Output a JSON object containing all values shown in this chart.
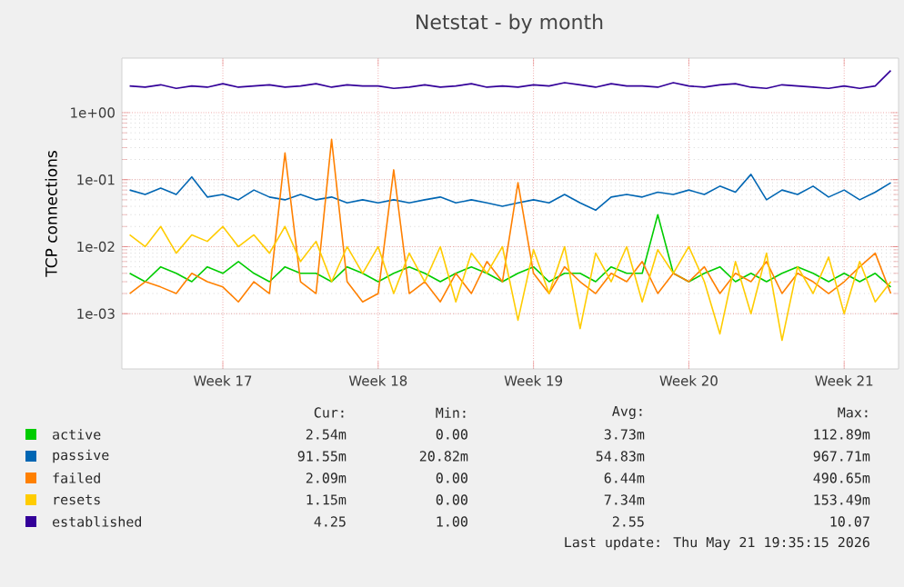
{
  "chart_data": {
    "type": "line",
    "title": "Netstat - by month",
    "ylabel": "TCP connections",
    "log": "y",
    "grid": true,
    "legend": "bottom",
    "marker": "none",
    "line_style": "solid",
    "categories": [
      null,
      null,
      null,
      null,
      null,
      null,
      "Week 17",
      null,
      null,
      null,
      null,
      null,
      null,
      null,
      null,
      null,
      "Week 18",
      null,
      null,
      null,
      null,
      null,
      null,
      null,
      null,
      null,
      "Week 19",
      null,
      null,
      null,
      null,
      null,
      null,
      null,
      null,
      null,
      "Week 20",
      null,
      null,
      null,
      null,
      null,
      null,
      null,
      null,
      null,
      "Week 21",
      null,
      null,
      null
    ],
    "ylim": [
      0.00015,
      6.5
    ],
    "yticks": [
      {
        "value": 0.001,
        "label": "1e-03"
      },
      {
        "value": 0.01,
        "label": "1e-02"
      },
      {
        "value": 0.1,
        "label": "1e-01"
      },
      {
        "value": 1,
        "label": "1e+00"
      }
    ],
    "series": [
      {
        "name": "active",
        "color": "#00cc00",
        "values": [
          0.004,
          0.003,
          0.005,
          0.004,
          0.003,
          0.005,
          0.004,
          0.006,
          0.004,
          0.003,
          0.005,
          0.004,
          0.004,
          0.003,
          0.005,
          0.004,
          0.003,
          0.004,
          0.005,
          0.004,
          0.003,
          0.004,
          0.005,
          0.004,
          0.003,
          0.004,
          0.005,
          0.003,
          0.004,
          0.004,
          0.003,
          0.005,
          0.004,
          0.004,
          0.03,
          0.004,
          0.003,
          0.004,
          0.005,
          0.003,
          0.004,
          0.003,
          0.004,
          0.005,
          0.004,
          0.003,
          0.004,
          0.003,
          0.004,
          0.0025
        ]
      },
      {
        "name": "passive",
        "color": "#0066b3",
        "values": [
          0.07,
          0.06,
          0.075,
          0.06,
          0.11,
          0.055,
          0.06,
          0.05,
          0.07,
          0.055,
          0.05,
          0.06,
          0.05,
          0.055,
          0.045,
          0.05,
          0.045,
          0.05,
          0.045,
          0.05,
          0.055,
          0.045,
          0.05,
          0.045,
          0.04,
          0.045,
          0.05,
          0.045,
          0.06,
          0.045,
          0.035,
          0.055,
          0.06,
          0.055,
          0.065,
          0.06,
          0.07,
          0.06,
          0.08,
          0.065,
          0.12,
          0.05,
          0.07,
          0.06,
          0.08,
          0.055,
          0.07,
          0.05,
          0.065,
          0.09
        ]
      },
      {
        "name": "failed",
        "color": "#ff8000",
        "values": [
          0.002,
          0.003,
          0.0025,
          0.002,
          0.004,
          0.003,
          0.0025,
          0.0015,
          0.003,
          0.002,
          0.25,
          0.003,
          0.002,
          0.4,
          0.003,
          0.0015,
          0.002,
          0.14,
          0.002,
          0.003,
          0.0015,
          0.004,
          0.002,
          0.006,
          0.003,
          0.09,
          0.004,
          0.002,
          0.005,
          0.003,
          0.002,
          0.004,
          0.003,
          0.006,
          0.002,
          0.004,
          0.003,
          0.005,
          0.002,
          0.004,
          0.003,
          0.006,
          0.002,
          0.004,
          0.003,
          0.002,
          0.003,
          0.005,
          0.008,
          0.002
        ]
      },
      {
        "name": "resets",
        "color": "#ffcc00",
        "values": [
          0.015,
          0.01,
          0.02,
          0.008,
          0.015,
          0.012,
          0.02,
          0.01,
          0.015,
          0.008,
          0.02,
          0.006,
          0.012,
          0.003,
          0.01,
          0.004,
          0.01,
          0.002,
          0.008,
          0.003,
          0.01,
          0.0015,
          0.008,
          0.004,
          0.01,
          0.0008,
          0.009,
          0.002,
          0.01,
          0.0006,
          0.008,
          0.003,
          0.01,
          0.0015,
          0.009,
          0.004,
          0.01,
          0.003,
          0.0005,
          0.006,
          0.001,
          0.008,
          0.0004,
          0.005,
          0.002,
          0.007,
          0.001,
          0.006,
          0.0015,
          0.003
        ]
      },
      {
        "name": "established",
        "color": "#330099",
        "values": [
          2.5,
          2.4,
          2.6,
          2.3,
          2.5,
          2.4,
          2.7,
          2.4,
          2.5,
          2.6,
          2.4,
          2.5,
          2.7,
          2.4,
          2.6,
          2.5,
          2.5,
          2.3,
          2.4,
          2.6,
          2.4,
          2.5,
          2.7,
          2.4,
          2.5,
          2.4,
          2.6,
          2.5,
          2.8,
          2.6,
          2.4,
          2.7,
          2.5,
          2.5,
          2.4,
          2.8,
          2.5,
          2.4,
          2.6,
          2.7,
          2.4,
          2.3,
          2.6,
          2.5,
          2.4,
          2.3,
          2.5,
          2.3,
          2.5,
          4.25
        ]
      }
    ],
    "annotations": [
      "Cur:",
      "Min:",
      "Avg:",
      "Max:",
      "2.54m",
      "0.00",
      "3.73m",
      "112.89m",
      "91.55m",
      "20.82m",
      "54.83m",
      "967.71m",
      "2.09m",
      "0.00",
      "6.44m",
      "490.65m",
      "1.15m",
      "0.00",
      "7.34m",
      "153.49m",
      "4.25",
      "1.00",
      "2.55",
      "10.07",
      "Last update: Thu May 21 19:35:15 2026"
    ]
  }
}
